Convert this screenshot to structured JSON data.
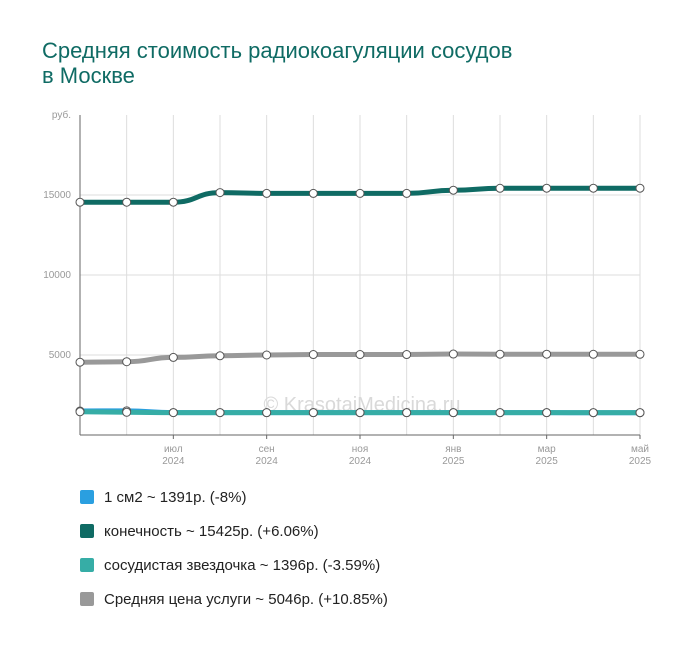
{
  "title": {
    "line1": "Средняя стоимость радиокоагуляции сосудов",
    "line2": "в Москве"
  },
  "watermark": "© KrasotaiMedicina.ru",
  "colors": {
    "title": "#0f6b64",
    "grid": "#dddddd",
    "axis": "#666666"
  },
  "legend": [
    {
      "label": "1 см2 ~ 1391р. (-8%)",
      "color": "#2a9fe0"
    },
    {
      "label": "конечность ~ 15425р. (+6.06%)",
      "color": "#0f6b64"
    },
    {
      "label": "сосудистая звездочка ~ 1396р. (-3.59%)",
      "color": "#36ada6"
    },
    {
      "label": "Средняя цена услуги ~ 5046р. (+10.85%)",
      "color": "#999999"
    }
  ],
  "chart_data": {
    "type": "line",
    "y_unit_label": "руб.",
    "ylim": [
      0,
      20000
    ],
    "y_ticks": [
      5000,
      10000,
      15000
    ],
    "grid": true,
    "x": [
      "2024-05",
      "2024-06",
      "2024-07",
      "2024-08",
      "2024-09",
      "2024-10",
      "2024-11",
      "2024-12",
      "2025-01",
      "2025-02",
      "2025-03",
      "2025-04",
      "2025-05"
    ],
    "x_tick_labels": [
      {
        "month": "июл",
        "year": "2024"
      },
      {
        "month": "сен",
        "year": "2024"
      },
      {
        "month": "ноя",
        "year": "2024"
      },
      {
        "month": "янв",
        "year": "2025"
      },
      {
        "month": "мар",
        "year": "2025"
      },
      {
        "month": "май",
        "year": "2025"
      }
    ],
    "series": [
      {
        "name": "1 см2",
        "color": "#2a9fe0",
        "values": [
          1500,
          1510,
          1400,
          1395,
          1395,
          1395,
          1395,
          1395,
          1395,
          1395,
          1395,
          1392,
          1391
        ]
      },
      {
        "name": "конечность",
        "color": "#0f6b64",
        "values": [
          14550,
          14550,
          14550,
          15150,
          15100,
          15100,
          15100,
          15100,
          15300,
          15420,
          15425,
          15425,
          15425
        ]
      },
      {
        "name": "сосудистая звездочка",
        "color": "#36ada6",
        "values": [
          1450,
          1420,
          1400,
          1400,
          1398,
          1398,
          1397,
          1396,
          1396,
          1396,
          1396,
          1396,
          1396
        ]
      },
      {
        "name": "Средняя цена услуги",
        "color": "#999999",
        "values": [
          4550,
          4580,
          4850,
          4950,
          5000,
          5030,
          5030,
          5030,
          5060,
          5050,
          5050,
          5046,
          5046
        ]
      }
    ]
  }
}
